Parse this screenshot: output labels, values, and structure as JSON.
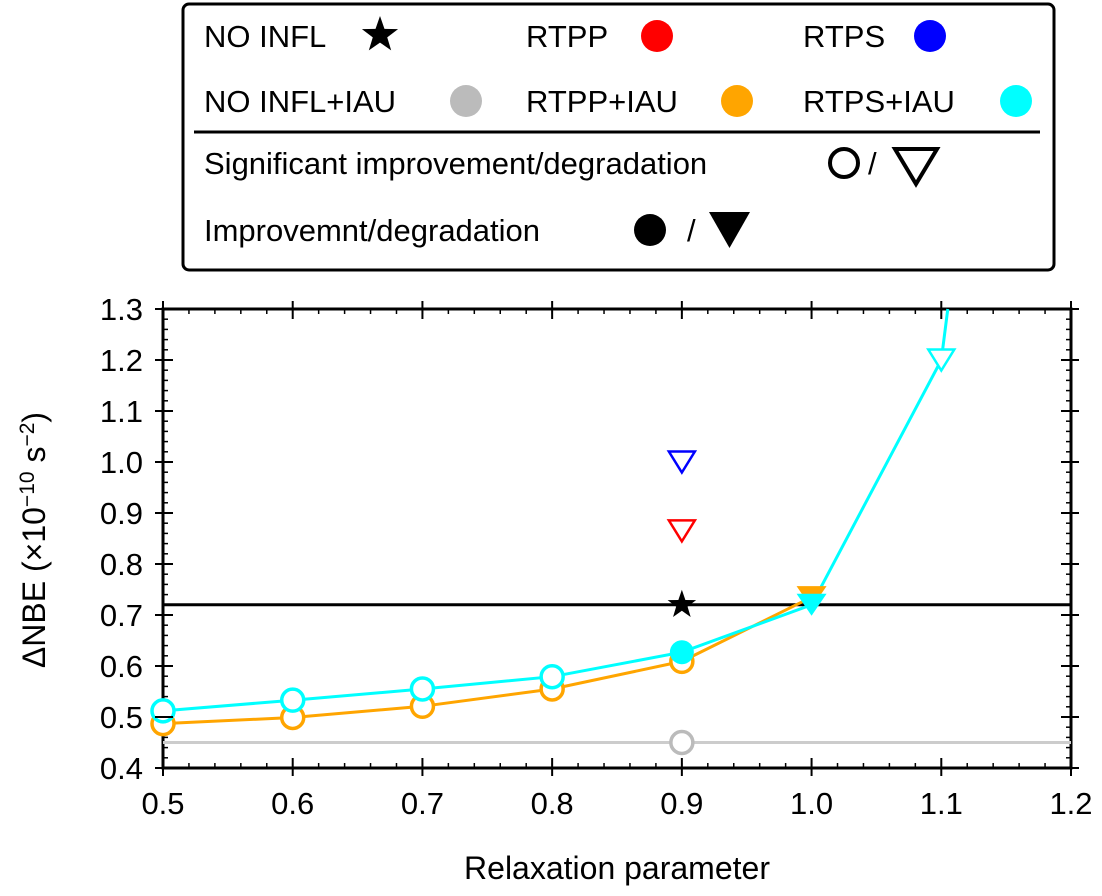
{
  "legend": {
    "entries": [
      {
        "label": "NO INFL",
        "marker": "star",
        "color": "#000000"
      },
      {
        "label": "RTPP",
        "marker": "circle",
        "color": "#ff0000"
      },
      {
        "label": "RTPS",
        "marker": "circle",
        "color": "#0000ff"
      },
      {
        "label": "NO INFL+IAU",
        "marker": "circle",
        "color": "#bbbbbb"
      },
      {
        "label": "RTPP+IAU",
        "marker": "circle",
        "color": "#ffa500"
      },
      {
        "label": "RTPS+IAU",
        "marker": "circle",
        "color": "#00ffff"
      }
    ],
    "significant_label": "Significant improvement/degradation",
    "insignificant_label": "Improvemnt/degradation",
    "slash": "/"
  },
  "chart_data": {
    "type": "line",
    "xlabel": "Relaxation parameter",
    "ylabel": "ΔNBE (×10⁻¹⁰ s⁻²)",
    "xlim": [
      0.5,
      1.2
    ],
    "ylim": [
      0.4,
      1.3
    ],
    "xticks": [
      "0.5",
      "0.6",
      "0.7",
      "0.8",
      "0.9",
      "1.0",
      "1.1",
      "1.2"
    ],
    "yticks": [
      "0.4",
      "0.5",
      "0.6",
      "0.7",
      "0.8",
      "0.9",
      "1.0",
      "1.1",
      "1.2",
      "1.3"
    ],
    "reference_lines": [
      {
        "name": "NO INFL",
        "y": 0.72,
        "color": "#000000"
      },
      {
        "name": "NO INFL+IAU",
        "y": 0.45,
        "color": "#cccccc"
      }
    ],
    "series": [
      {
        "name": "NO INFL",
        "color": "#000000",
        "x": [
          0.9
        ],
        "y": [
          0.72
        ],
        "markers": [
          "star"
        ]
      },
      {
        "name": "RTPP",
        "color": "#ff0000",
        "x": [
          0.9
        ],
        "y": [
          0.865
        ],
        "markers": [
          "open-triangle"
        ]
      },
      {
        "name": "RTPS",
        "color": "#0000ff",
        "x": [
          0.9
        ],
        "y": [
          1.0
        ],
        "markers": [
          "open-triangle"
        ]
      },
      {
        "name": "NO INFL+IAU",
        "color": "#bbbbbb",
        "x": [
          0.9
        ],
        "y": [
          0.45
        ],
        "markers": [
          "open-circle"
        ]
      },
      {
        "name": "RTPP+IAU",
        "color": "#ffa500",
        "line": true,
        "x": [
          0.5,
          0.6,
          0.7,
          0.8,
          0.9,
          1.0
        ],
        "y": [
          0.487,
          0.499,
          0.521,
          0.555,
          0.609,
          0.735
        ],
        "markers": [
          "open-circle",
          "open-circle",
          "open-circle",
          "open-circle",
          "open-circle",
          "filled-triangle"
        ]
      },
      {
        "name": "RTPS+IAU",
        "color": "#00ffff",
        "line": true,
        "x": [
          0.5,
          0.6,
          0.7,
          0.8,
          0.9,
          1.0,
          1.1,
          1.105
        ],
        "y": [
          0.512,
          0.533,
          0.555,
          0.579,
          0.627,
          0.72,
          1.2,
          1.3
        ],
        "markers": [
          "open-circle",
          "open-circle",
          "open-circle",
          "open-circle",
          "filled-circle",
          "filled-triangle",
          "open-triangle",
          "none"
        ]
      }
    ]
  }
}
